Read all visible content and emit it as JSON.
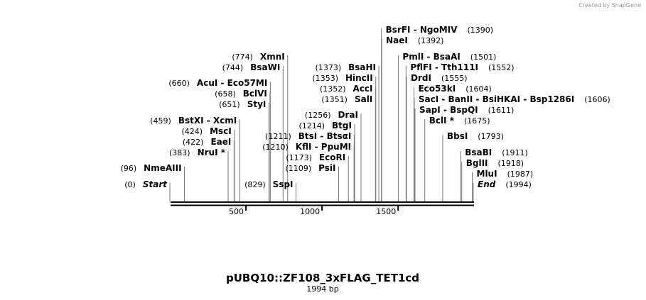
{
  "watermark": "Created by SnapGene",
  "map": {
    "title": "pUBQ10::ZF108_3xFLAG_TET1cd",
    "subtitle": "1994 bp",
    "length": 1994,
    "ticks": [
      500,
      1000,
      1500
    ],
    "sites": [
      {
        "name": "Start",
        "position": {
          "value": 0,
          "label": "(0)"
        },
        "italic": true
      },
      {
        "name": "NmeAIII",
        "position": {
          "value": 96,
          "label": "(96)"
        }
      },
      {
        "name": "NruI *",
        "position": {
          "value": 383,
          "label": "(383)"
        }
      },
      {
        "name": "EaeI",
        "position": {
          "value": 422,
          "label": "(422)"
        }
      },
      {
        "name": "MscI",
        "position": {
          "value": 424,
          "label": "(424)"
        }
      },
      {
        "name": "BstXI  - XcmI",
        "position": {
          "value": 459,
          "label": "(459)"
        }
      },
      {
        "name": "StyI",
        "position": {
          "value": 651,
          "label": "(651)"
        }
      },
      {
        "name": "BclVI",
        "position": {
          "value": 658,
          "label": "(658)"
        }
      },
      {
        "name": "AcuI  - Eco57MI",
        "position": {
          "value": 660,
          "label": "(660)"
        }
      },
      {
        "name": "BsaWI",
        "position": {
          "value": 744,
          "label": "(744)"
        }
      },
      {
        "name": "XmnI",
        "position": {
          "value": 774,
          "label": "(774)"
        }
      },
      {
        "name": "SspI",
        "position": {
          "value": 829,
          "label": "(829)"
        }
      },
      {
        "name": "PsiI",
        "position": {
          "value": 1109,
          "label": "(1109)"
        }
      },
      {
        "name": "EcoRI",
        "position": {
          "value": 1173,
          "label": "(1173)"
        }
      },
      {
        "name": "KflI  - PpuMI",
        "position": {
          "value": 1210,
          "label": "(1210)"
        }
      },
      {
        "name": "BtsI  - BtsαI",
        "position": {
          "value": 1211,
          "label": "(1211)"
        }
      },
      {
        "name": "BtgI",
        "position": {
          "value": 1214,
          "label": "(1214)"
        }
      },
      {
        "name": "DraI",
        "position": {
          "value": 1256,
          "label": "(1256)"
        }
      },
      {
        "name": "SalI",
        "position": {
          "value": 1351,
          "label": "(1351)"
        }
      },
      {
        "name": "AccI",
        "position": {
          "value": 1352,
          "label": "(1352)"
        }
      },
      {
        "name": "HincII",
        "position": {
          "value": 1353,
          "label": "(1353)"
        }
      },
      {
        "name": "BsaHI",
        "position": {
          "value": 1373,
          "label": "(1373)"
        }
      },
      {
        "name": "BsrFI  - NgoMIV",
        "position": {
          "value": 1390,
          "label": "(1390)"
        }
      },
      {
        "name": "NaeI",
        "position": {
          "value": 1392,
          "label": "(1392)"
        }
      },
      {
        "name": "PmlI  - BsaAI",
        "position": {
          "value": 1501,
          "label": "(1501)"
        }
      },
      {
        "name": "PflFI  - Tth111I",
        "position": {
          "value": 1552,
          "label": "(1552)"
        }
      },
      {
        "name": "DrdI",
        "position": {
          "value": 1555,
          "label": "(1555)"
        }
      },
      {
        "name": "Eco53kI",
        "position": {
          "value": 1604,
          "label": "(1604)"
        }
      },
      {
        "name": "SacI  - BanII  - BsiHKAI  - Bsp1286I",
        "position": {
          "value": 1606,
          "label": "(1606)"
        }
      },
      {
        "name": "SapI  - BspQI",
        "position": {
          "value": 1611,
          "label": "(1611)"
        }
      },
      {
        "name": "BclI *",
        "position": {
          "value": 1675,
          "label": "(1675)"
        }
      },
      {
        "name": "BbsI",
        "position": {
          "value": 1793,
          "label": "(1793)"
        }
      },
      {
        "name": "BsaBI",
        "position": {
          "value": 1911,
          "label": "(1911)"
        }
      },
      {
        "name": "BglII",
        "position": {
          "value": 1918,
          "label": "(1918)"
        }
      },
      {
        "name": "MluI",
        "position": {
          "value": 1987,
          "label": "(1987)"
        }
      },
      {
        "name": "End",
        "position": {
          "value": 1994,
          "label": "(1994)"
        },
        "italic": true
      }
    ]
  }
}
